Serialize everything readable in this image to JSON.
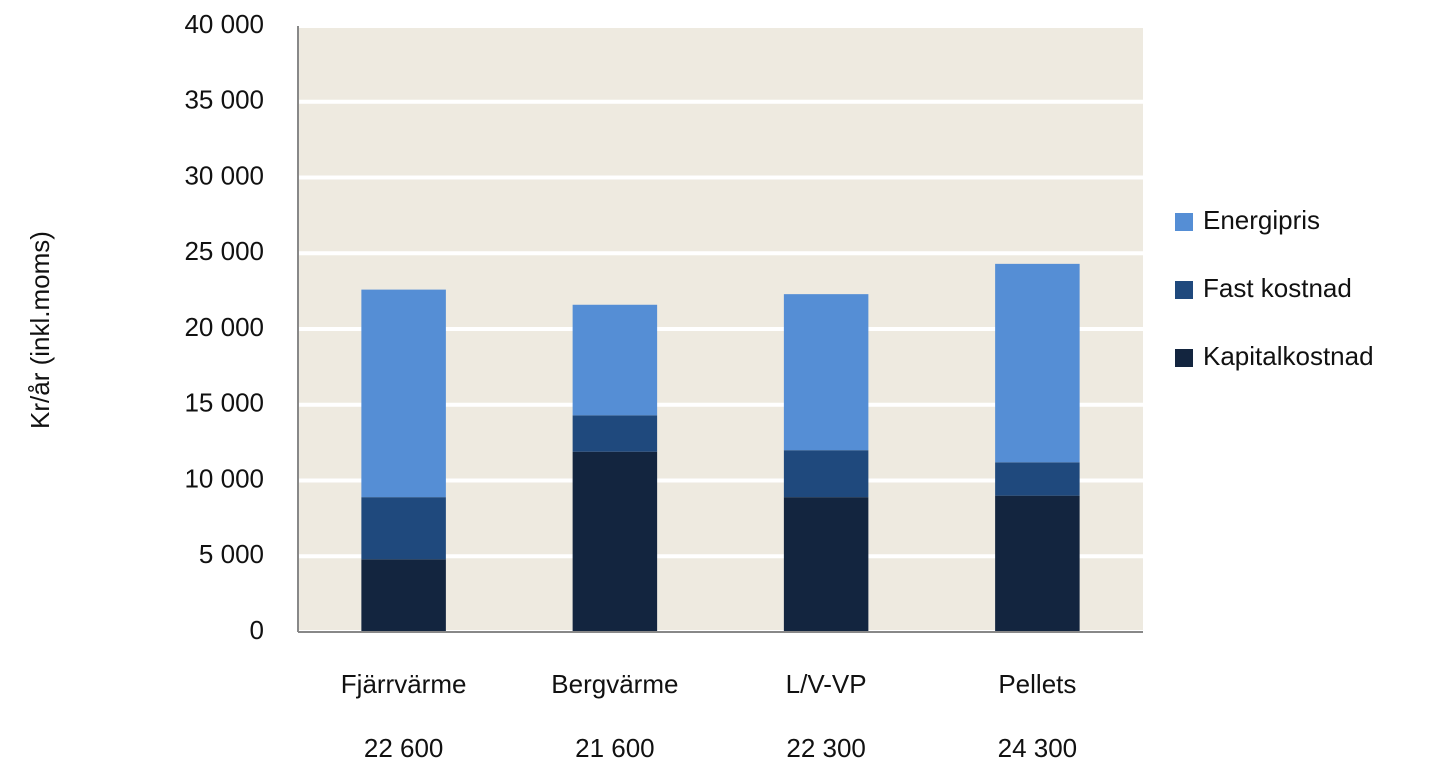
{
  "chart_data": {
    "type": "stacked_bar",
    "y_label": "Kr/år (inkl.moms)",
    "categories": [
      "Fjärrvärme",
      "Bergvärme",
      "L/V-VP",
      "Pellets"
    ],
    "series": [
      {
        "name": "Kapitalkostnad",
        "color": "#13253f",
        "values": [
          4800,
          11900,
          8900,
          9000
        ]
      },
      {
        "name": "Fast kostnad",
        "color": "#1f497d",
        "values": [
          4100,
          2400,
          3100,
          2200
        ]
      },
      {
        "name": "Energipris",
        "color": "#558ed5",
        "values": [
          13700,
          7300,
          10300,
          13100
        ]
      }
    ],
    "totals": {
      "values": [
        22600,
        21600,
        22300,
        24300
      ],
      "value_labels": [
        "22 600",
        "21 600",
        "22 300",
        "24 300"
      ]
    },
    "ylim": [
      0,
      40000
    ],
    "yticks": [
      0,
      {
        "value": 5000,
        "label": "5 000"
      },
      {
        "value": 10000,
        "label": "10 000"
      },
      {
        "value": 15000,
        "label": "15 000"
      },
      {
        "value": 20000,
        "label": "20 000"
      },
      {
        "value": 25000,
        "label": "25 000"
      },
      {
        "value": 30000,
        "label": "30 000"
      },
      {
        "value": 35000,
        "label": "35 000"
      },
      {
        "value": 40000,
        "label": "40 000"
      }
    ],
    "grid": true,
    "plot_background": "#eeeae0",
    "legend": "right"
  }
}
